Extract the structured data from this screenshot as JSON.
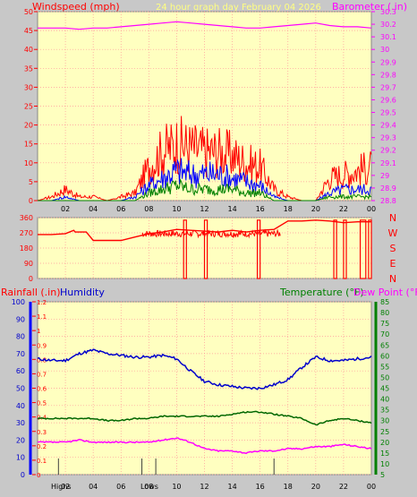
{
  "header": {
    "windspeed_label": "Windspeed (mph)",
    "title": "24 hour graph day   February 04 2026",
    "barometer_label": "Barometer (.in)"
  },
  "labels": {
    "rainfall": "Rainfall (.in)",
    "humidity": "Humidity",
    "temperature": "Temperature (°F)",
    "dewpoint": "Dew Point (°F)",
    "highs": "Highs",
    "lows": "Lows"
  },
  "colors": {
    "background": "#c8c8c8",
    "plot_bg": "#ffffc0",
    "grid": "#ff9999",
    "wind_gust": "#ff0000",
    "wind_avg": "#0000ff",
    "wind_low": "#008000",
    "barometer": "#ff00ff",
    "direction": "#ff0000",
    "humidity": "#0000cc",
    "temperature": "#006600",
    "dewpoint": "#ff00ff",
    "rain_axis": "#ff0000",
    "humidity_axis": "#0000ff",
    "temp_axis": "#008000"
  },
  "chart_data": [
    {
      "type": "line",
      "name": "wind-barometer",
      "x_ticks": [
        "02",
        "04",
        "06",
        "08",
        "10",
        "12",
        "14",
        "16",
        "18",
        "20",
        "22",
        "00"
      ],
      "y_left": {
        "label": "Windspeed (mph)",
        "range": [
          0,
          50
        ],
        "ticks": [
          "0",
          "5",
          "10",
          "15",
          "20",
          "25",
          "30",
          "35",
          "40",
          "45",
          "50"
        ]
      },
      "y_right": {
        "label": "Barometer (.in)",
        "range": [
          28.8,
          30.3
        ],
        "ticks": [
          "28.8",
          "28.9",
          "29",
          "29.1",
          "29.2",
          "29.3",
          "29.4",
          "29.5",
          "29.6",
          "29.7",
          "29.8",
          "29.9",
          "30",
          "30.1",
          "30.2",
          "30.3"
        ]
      },
      "x_hours": [
        0,
        1,
        2,
        3,
        4,
        5,
        6,
        7,
        8,
        9,
        10,
        11,
        12,
        13,
        14,
        15,
        16,
        17,
        18,
        19,
        20,
        21,
        22,
        23,
        24
      ],
      "series": [
        {
          "key": "gust",
          "values": [
            0,
            1,
            3,
            1,
            1,
            0,
            1,
            2,
            9,
            13,
            15,
            14,
            13,
            13,
            12,
            10,
            9,
            3,
            1,
            0,
            0,
            6,
            7,
            8,
            9
          ]
        },
        {
          "key": "avg",
          "values": [
            0,
            0,
            1,
            0,
            0,
            0,
            0,
            1,
            4,
            6,
            8,
            7,
            7,
            7,
            6,
            5,
            4,
            1,
            0,
            0,
            0,
            2,
            3,
            3,
            3
          ]
        },
        {
          "key": "low",
          "values": [
            0,
            0,
            0,
            0,
            0,
            0,
            0,
            0,
            2,
            3,
            4,
            3,
            3,
            3,
            3,
            2,
            2,
            0,
            0,
            0,
            0,
            1,
            1,
            1,
            1
          ]
        },
        {
          "key": "barometer",
          "values": [
            30.17,
            30.17,
            30.17,
            30.16,
            30.17,
            30.17,
            30.18,
            30.19,
            30.2,
            30.21,
            30.22,
            30.21,
            30.2,
            30.19,
            30.18,
            30.17,
            30.17,
            30.18,
            30.19,
            30.2,
            30.21,
            30.19,
            30.18,
            30.18,
            30.17
          ]
        }
      ]
    },
    {
      "type": "line",
      "name": "wind-direction",
      "x_ticks": [
        "02",
        "04",
        "06",
        "08",
        "10",
        "12",
        "14",
        "16",
        "18",
        "20",
        "22",
        "00"
      ],
      "y_left": {
        "range": [
          0,
          360
        ],
        "ticks": [
          "0",
          "90",
          "180",
          "270",
          "360"
        ]
      },
      "y_right_ticks": [
        "N",
        "W",
        "S",
        "E",
        "N"
      ],
      "x_hours": [
        0,
        1,
        2,
        2.6,
        2.7,
        3.5,
        4,
        5,
        6,
        7,
        7.5,
        8,
        9,
        10,
        11,
        12,
        13,
        14,
        15,
        16,
        17,
        18,
        19,
        20,
        21,
        22,
        23,
        24
      ],
      "series": [
        {
          "key": "direction",
          "values": [
            260,
            260,
            265,
            285,
            275,
            275,
            225,
            225,
            225,
            245,
            255,
            265,
            275,
            290,
            285,
            280,
            275,
            285,
            275,
            285,
            290,
            340,
            340,
            345,
            340,
            330,
            335,
            335
          ]
        }
      ],
      "gaps_hours": [
        10.5,
        10.7,
        12,
        12.2,
        15.8,
        16.0,
        21.3,
        21.5,
        22,
        22.2,
        23.2,
        23.6,
        23.8,
        24
      ],
      "gap_value": 0
    },
    {
      "type": "line",
      "name": "rain-humidity-temp",
      "x_ticks": [
        "02",
        "04",
        "06",
        "08",
        "10",
        "12",
        "14",
        "16",
        "18",
        "20",
        "22",
        "00"
      ],
      "y_left_outer": {
        "label": "Rainfall (.in)",
        "range": [
          0,
          1.2
        ],
        "ticks": [
          "0",
          "0.1",
          "0.2",
          "0.3",
          "0.4",
          "0.5",
          "0.6",
          "0.7",
          "0.8",
          "0.9",
          "1",
          "1.1",
          "1.2"
        ]
      },
      "y_left_inner": {
        "label": "Humidity",
        "range": [
          0,
          100
        ],
        "ticks": [
          "0",
          "10",
          "20",
          "30",
          "40",
          "50",
          "60",
          "70",
          "80",
          "90",
          "100"
        ]
      },
      "y_right": {
        "label": "Temperature (°F)",
        "range": [
          5,
          85
        ],
        "ticks": [
          "5",
          "10",
          "15",
          "20",
          "25",
          "30",
          "35",
          "40",
          "45",
          "50",
          "55",
          "60",
          "65",
          "70",
          "75",
          "80",
          "85"
        ]
      },
      "x_hours": [
        0,
        1,
        2,
        3,
        4,
        5,
        6,
        7,
        8,
        9,
        10,
        11,
        12,
        13,
        14,
        15,
        16,
        17,
        18,
        19,
        20,
        21,
        22,
        23,
        24
      ],
      "series": [
        {
          "key": "humidity",
          "axis": "humidity",
          "values": [
            67,
            66,
            66,
            70,
            72,
            70,
            69,
            68,
            68,
            69,
            67,
            60,
            54,
            52,
            51,
            50,
            50,
            52,
            55,
            62,
            68,
            66,
            66,
            67,
            68
          ]
        },
        {
          "key": "temperature",
          "axis": "temp",
          "values": [
            31,
            31,
            31,
            31,
            31,
            30,
            30,
            31,
            31,
            32,
            32,
            32,
            32,
            32,
            33,
            34,
            34,
            33,
            32,
            31,
            28,
            30,
            31,
            30,
            29
          ]
        },
        {
          "key": "dewpoint",
          "axis": "temp",
          "values": [
            20,
            20,
            20,
            21,
            20,
            20,
            20,
            20,
            20,
            21,
            22,
            20,
            17,
            16,
            16,
            15,
            16,
            16,
            17,
            17,
            18,
            18,
            19,
            18,
            17
          ]
        }
      ],
      "highs_hour": 0.85,
      "lows_hour": 7.0,
      "markers_hours": [
        1.5,
        7.5,
        8.5,
        17.0
      ]
    }
  ]
}
